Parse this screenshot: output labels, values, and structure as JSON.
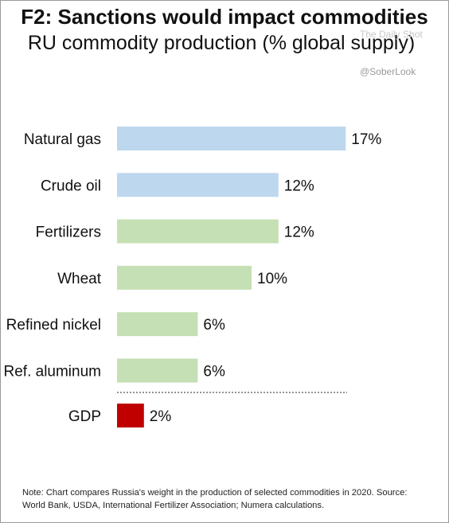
{
  "title": "F2: Sanctions would impact commodities",
  "subtitle": "RU commodity production (% global supply)",
  "watermark": "The Daily Shot",
  "handle": "@SoberLook",
  "note": {
    "line1": "Note: Chart compares Russia's weight in the production of selected commodities in 2020. Source:",
    "line2": "World Bank, USDA, International Fertilizer Association; Numera calculations."
  },
  "colors": {
    "energy": "#bdd7ee",
    "agri_metals": "#c5e0b4",
    "gdp": "#c00000"
  },
  "chart_data": {
    "type": "bar",
    "orientation": "horizontal",
    "categories": [
      "Natural gas",
      "Crude oil",
      "Fertilizers",
      "Wheat",
      "Refined nickel",
      "Ref. aluminum",
      "GDP"
    ],
    "values": [
      17,
      12,
      12,
      10,
      6,
      6,
      2
    ],
    "value_labels": [
      "17%",
      "12%",
      "12%",
      "10%",
      "6%",
      "6%",
      "2%"
    ],
    "bar_colors": [
      "#bdd7ee",
      "#bdd7ee",
      "#c5e0b4",
      "#c5e0b4",
      "#c5e0b4",
      "#c5e0b4",
      "#c00000"
    ],
    "xlim": [
      0,
      17
    ],
    "grid": false,
    "legend": "none",
    "separator_before": "GDP"
  }
}
